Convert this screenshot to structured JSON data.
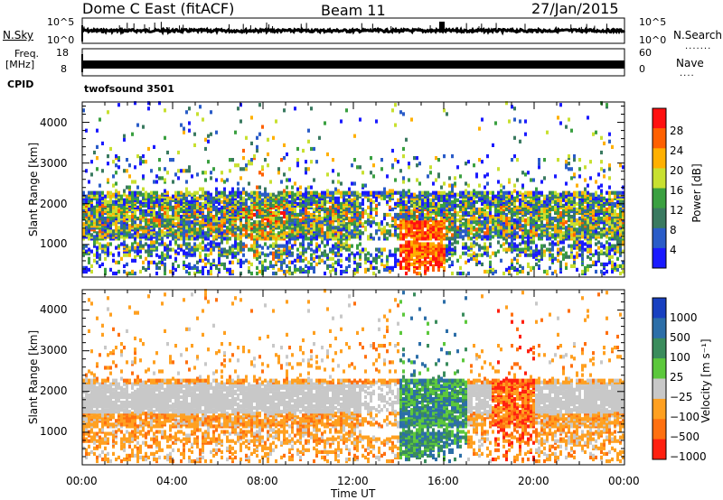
{
  "header": {
    "station": "Dome C East (fitACF)",
    "beam": "Beam 11",
    "date": "27/Jan/2015"
  },
  "sidebar_labels": {
    "nsky": "N.Sky",
    "freq_line1": "Freq.",
    "freq_line2": "[MHz]",
    "cpid": "CPID",
    "nsearch": "N.Search",
    "nave": "Nave"
  },
  "cpid_value": "twofsound 3501",
  "chart_data": [
    {
      "type": "line",
      "name": "noise-panel",
      "yticks_left": [
        "10^5",
        "10^0"
      ],
      "yticks_right": [
        "10^5",
        "10^0"
      ],
      "x_range_hours": [
        0,
        24
      ]
    },
    {
      "type": "line",
      "name": "frequency-panel",
      "yticks_left": [
        "18",
        "8"
      ],
      "yticks_right": [
        "60",
        "0"
      ],
      "x_range_hours": [
        0,
        24
      ]
    },
    {
      "type": "heatmap",
      "name": "power-panel",
      "ylabel": "Slant Range [km]",
      "yticks": [
        "1000",
        "2000",
        "3000",
        "4000"
      ],
      "ylim": [
        200,
        4500
      ],
      "colorbar_label": "Power [dB]",
      "colorbar_ticks": [
        "4",
        "8",
        "12",
        "16",
        "20",
        "24",
        "28"
      ],
      "colors": [
        "#1a1aff",
        "#2a5cc8",
        "#3a7a60",
        "#3aa040",
        "#c8e030",
        "#ffb000",
        "#ff6000",
        "#ff1010"
      ]
    },
    {
      "type": "heatmap",
      "name": "velocity-panel",
      "ylabel": "Slant Range [km]",
      "yticks": [
        "1000",
        "2000",
        "3000",
        "4000"
      ],
      "ylim": [
        200,
        4500
      ],
      "colorbar_label": "Velocity [m s⁻¹]",
      "colorbar_ticks": [
        "1000",
        "500",
        "100",
        "25",
        "−25",
        "−100",
        "−500",
        "−1000"
      ],
      "colors": [
        "#1840c0",
        "#2c6ea8",
        "#3a8c5c",
        "#5cc83c",
        "#c8c8c8",
        "#ffa020",
        "#ff7010",
        "#ff2010"
      ]
    }
  ],
  "x_axis": {
    "label": "Time UT",
    "ticks": [
      "00:00",
      "04:00",
      "08:00",
      "12:00",
      "16:00",
      "20:00",
      "00:00"
    ]
  }
}
